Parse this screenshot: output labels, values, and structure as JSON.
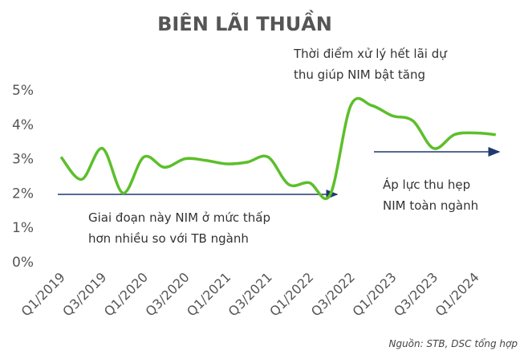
{
  "chart_data": {
    "type": "line",
    "title": "BIÊN LÃI THUẦN",
    "categories": [
      "Q1/2019",
      null,
      "Q3/2019",
      null,
      "Q1/2020",
      null,
      "Q3/2020",
      null,
      "Q1/2021",
      null,
      "Q3/2021",
      null,
      "Q1/2022",
      null,
      "Q3/2022",
      null,
      "Q1/2023",
      null,
      "Q3/2023",
      null,
      "Q1/2024",
      null
    ],
    "series": [
      {
        "name": "NIM",
        "color": "#5cbf2a",
        "values": [
          3.05,
          2.4,
          3.3,
          2.0,
          3.05,
          2.75,
          3.0,
          2.95,
          2.85,
          2.9,
          3.05,
          2.25,
          2.3,
          1.95,
          4.55,
          4.55,
          4.25,
          4.1,
          3.3,
          3.7,
          3.75,
          3.7
        ]
      }
    ],
    "ylim": [
      0,
      5
    ],
    "yticks": [
      {
        "value": 0,
        "label": "0%"
      },
      {
        "value": 1,
        "label": "1%"
      },
      {
        "value": 2,
        "label": "2%"
      },
      {
        "value": 3,
        "label": "3%"
      },
      {
        "value": 4,
        "label": "4%"
      },
      {
        "value": 5,
        "label": "5%"
      }
    ],
    "annotations": [
      "Thời điểm xử lý hết lãi dự",
      "thu giúp NIM bật tăng",
      "Giai đoạn này NIM ở mức thấp",
      "hơn nhiều so với TB ngành",
      "Áp lực thu hẹp",
      "NIM toàn ngành"
    ],
    "source": "Nguồn: STB, DSC tổng hợp"
  }
}
